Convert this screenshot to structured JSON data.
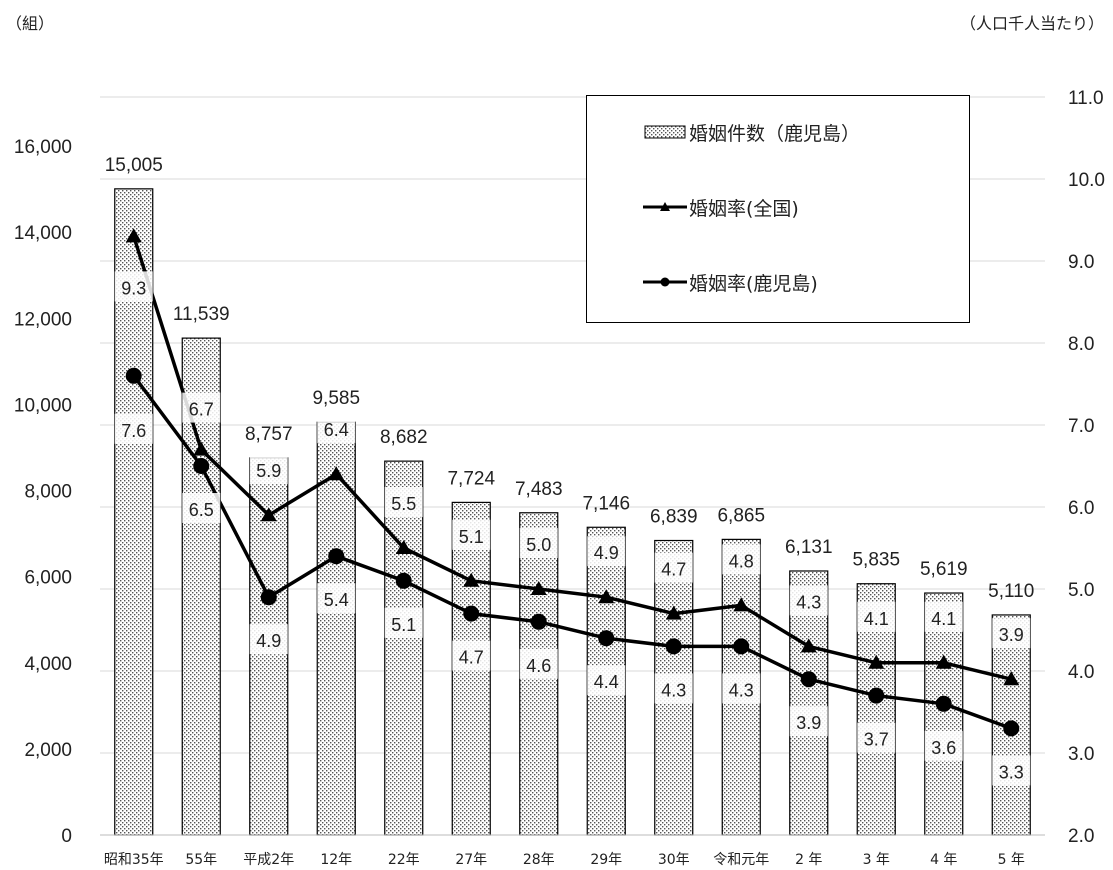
{
  "units": {
    "left": "（組）",
    "right": "（人口千人当たり）"
  },
  "legend": [
    {
      "label": "婚姻件数（鹿児島）",
      "icon": "dotted-bar-icon"
    },
    {
      "label": "婚姻率(全国)",
      "icon": "triangle-marker-line-icon"
    },
    {
      "label": "婚姻率(鹿児島)",
      "icon": "circle-marker-line-icon"
    }
  ],
  "chart_data": {
    "type": "bar",
    "categories": [
      "昭和35年",
      "55年",
      "平成2年",
      "12年",
      "22年",
      "27年",
      "28年",
      "29年",
      "30年",
      "令和元年",
      "2 年",
      "3 年",
      "4 年",
      "5 年"
    ],
    "series": [
      {
        "name": "婚姻件数（鹿児島）",
        "type": "bar",
        "axis": "left",
        "values": [
          15005,
          11539,
          8757,
          9585,
          8682,
          7724,
          7483,
          7146,
          6839,
          6865,
          6131,
          5835,
          5619,
          5110
        ],
        "labels": [
          "15,005",
          "11,539",
          "8,757",
          "9,585",
          "8,682",
          "7,724",
          "7,483",
          "7,146",
          "6,839",
          "6,865",
          "6,131",
          "5,835",
          "5,619",
          "5,110"
        ]
      },
      {
        "name": "婚姻率(全国)",
        "type": "line",
        "marker": "triangle",
        "axis": "right",
        "values": [
          9.3,
          6.7,
          5.9,
          6.4,
          5.5,
          5.1,
          5.0,
          4.9,
          4.7,
          4.8,
          4.3,
          4.1,
          4.1,
          3.9
        ],
        "labels": [
          "9.3",
          "6.7",
          "5.9",
          "6.4",
          "5.5",
          "5.1",
          "5.0",
          "4.9",
          "4.7",
          "4.8",
          "4.3",
          "4.1",
          "4.1",
          "3.9"
        ]
      },
      {
        "name": "婚姻率(鹿児島)",
        "type": "line",
        "marker": "circle",
        "axis": "right",
        "values": [
          7.6,
          6.5,
          4.9,
          5.4,
          5.1,
          4.7,
          4.6,
          4.4,
          4.3,
          4.3,
          3.9,
          3.7,
          3.6,
          3.3
        ],
        "labels": [
          "7.6",
          "6.5",
          "4.9",
          "5.4",
          "5.1",
          "4.7",
          "4.6",
          "4.4",
          "4.3",
          "4.3",
          "3.9",
          "3.7",
          "3.6",
          "3.3"
        ]
      }
    ],
    "y_left": {
      "ylim": [
        0,
        16000
      ],
      "ticks": [
        "0",
        "2,000",
        "4,000",
        "6,000",
        "8,000",
        "10,000",
        "12,000",
        "14,000",
        "16,000"
      ]
    },
    "y_right": {
      "ylim": [
        2.0,
        11.0
      ],
      "ticks": [
        "2.0",
        "3.0",
        "4.0",
        "5.0",
        "6.0",
        "7.0",
        "8.0",
        "9.0",
        "10.0",
        "11.0"
      ]
    },
    "grid": true,
    "legend_position": "top-right"
  },
  "colors": {
    "bar_fill": "#ffffff",
    "bar_dots": "#555555",
    "bar_stroke": "#000000",
    "line": "#000000",
    "grid": "#d9d9d9"
  }
}
